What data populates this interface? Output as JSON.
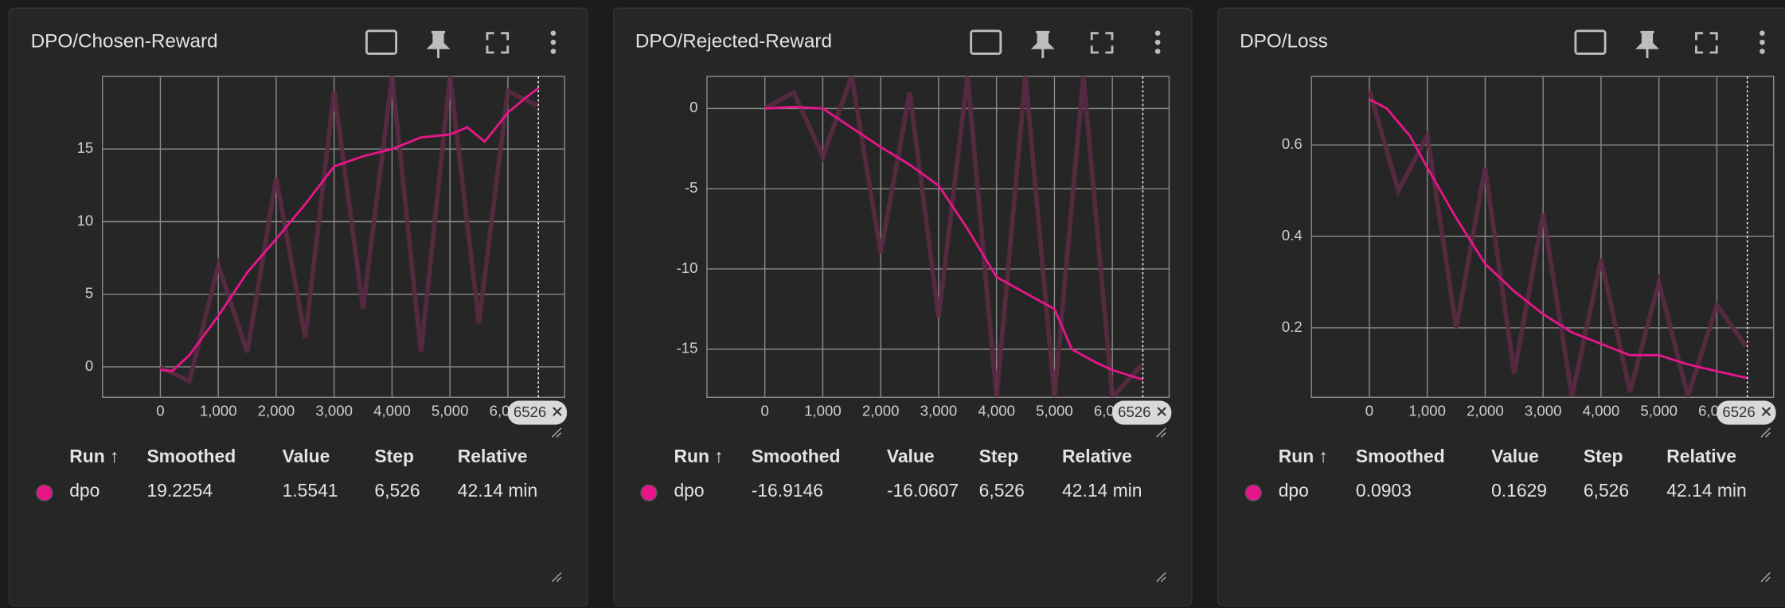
{
  "chart_data": [
    {
      "type": "line",
      "title": "DPO/Chosen-Reward",
      "xlim": [
        -1000,
        6980
      ],
      "ylim": [
        -2.1,
        20
      ],
      "xticks": [
        0,
        {
          "value": 1000,
          "label": "1,000"
        },
        {
          "value": 2000,
          "label": "2,000"
        },
        {
          "value": 3000,
          "label": "3,000"
        },
        {
          "value": 4000,
          "label": "4,000"
        },
        {
          "value": 5000,
          "label": "5,000"
        },
        {
          "value": 6000,
          "label": "6,000"
        }
      ],
      "yticks": [
        0,
        5,
        10,
        15
      ],
      "grid": true,
      "step_marker": 6526,
      "raw": {
        "x": [
          0,
          500,
          1000,
          1500,
          2000,
          2500,
          3000,
          3500,
          4000,
          4500,
          5000,
          5500,
          6000,
          6500
        ],
        "values": [
          0,
          -1,
          7,
          1,
          13,
          2,
          19,
          4,
          20,
          1,
          20,
          3,
          19,
          18
        ],
        "color": "#5b2a44"
      },
      "series": [
        {
          "name": "dpo",
          "color": "#e6168a",
          "x": [
            0,
            200,
            500,
            1000,
            1500,
            2000,
            2500,
            3000,
            3500,
            4000,
            4500,
            5000,
            5300,
            5600,
            6000,
            6300,
            6526
          ],
          "values": [
            -0.2,
            -0.3,
            0.8,
            3.5,
            6.5,
            8.8,
            11.2,
            13.8,
            14.5,
            15.0,
            15.8,
            16.0,
            16.5,
            15.5,
            17.5,
            18.5,
            19.2
          ]
        }
      ],
      "table": {
        "columns": [
          "Run ↑",
          "Smoothed",
          "Value",
          "Step",
          "Relative"
        ],
        "rows": [
          [
            "dpo",
            "19.2254",
            "1.5541",
            "6,526",
            "42.14 min"
          ]
        ]
      }
    },
    {
      "type": "line",
      "title": "DPO/Rejected-Reward",
      "xlim": [
        -1000,
        6980
      ],
      "ylim": [
        -18,
        2
      ],
      "xticks": [
        0,
        {
          "value": 1000,
          "label": "1,000"
        },
        {
          "value": 2000,
          "label": "2,000"
        },
        {
          "value": 3000,
          "label": "3,000"
        },
        {
          "value": 4000,
          "label": "4,000"
        },
        {
          "value": 5000,
          "label": "5,000"
        },
        {
          "value": 6000,
          "label": "6,000"
        }
      ],
      "yticks": [
        0,
        -5,
        -10,
        -15
      ],
      "grid": true,
      "step_marker": 6526,
      "raw": {
        "x": [
          0,
          500,
          1000,
          1500,
          2000,
          2500,
          3000,
          3500,
          4000,
          4500,
          5000,
          5500,
          6000,
          6500
        ],
        "values": [
          0,
          1,
          -3,
          2,
          -9,
          1,
          -13,
          2,
          -18,
          2,
          -18,
          2,
          -18,
          -16
        ],
        "color": "#5b2a44"
      },
      "series": [
        {
          "name": "dpo",
          "color": "#e6168a",
          "x": [
            0,
            500,
            1000,
            1500,
            2000,
            2500,
            3000,
            3500,
            4000,
            4500,
            5000,
            5300,
            5700,
            6000,
            6526
          ],
          "values": [
            0,
            0.1,
            0,
            -1.2,
            -2.4,
            -3.5,
            -4.8,
            -7.5,
            -10.5,
            -11.5,
            -12.5,
            -15,
            -15.8,
            -16.3,
            -16.9
          ]
        }
      ],
      "table": {
        "columns": [
          "Run ↑",
          "Smoothed",
          "Value",
          "Step",
          "Relative"
        ],
        "rows": [
          [
            "dpo",
            "-16.9146",
            "-16.0607",
            "6,526",
            "42.14 min"
          ]
        ]
      }
    },
    {
      "type": "line",
      "title": "DPO/Loss",
      "xlim": [
        -1000,
        6980
      ],
      "ylim": [
        0.048,
        0.75
      ],
      "xticks": [
        0,
        {
          "value": 1000,
          "label": "1,000"
        },
        {
          "value": 2000,
          "label": "2,000"
        },
        {
          "value": 3000,
          "label": "3,000"
        },
        {
          "value": 4000,
          "label": "4,000"
        },
        {
          "value": 5000,
          "label": "5,000"
        },
        {
          "value": 6000,
          "label": "6,000"
        }
      ],
      "yticks": [
        0.2,
        0.4,
        0.6
      ],
      "grid": true,
      "step_marker": 6526,
      "raw": {
        "x": [
          0,
          500,
          1000,
          1500,
          2000,
          2500,
          3000,
          3500,
          4000,
          4500,
          5000,
          5500,
          6000,
          6500
        ],
        "values": [
          0.72,
          0.5,
          0.62,
          0.2,
          0.55,
          0.1,
          0.45,
          0.05,
          0.35,
          0.06,
          0.3,
          0.05,
          0.25,
          0.16
        ],
        "color": "#5b2a44"
      },
      "series": [
        {
          "name": "dpo",
          "color": "#e6168a",
          "x": [
            0,
            300,
            700,
            1000,
            1500,
            2000,
            2500,
            3000,
            3500,
            4000,
            4500,
            5000,
            5500,
            6000,
            6526
          ],
          "values": [
            0.7,
            0.68,
            0.62,
            0.55,
            0.44,
            0.34,
            0.28,
            0.23,
            0.19,
            0.165,
            0.14,
            0.14,
            0.12,
            0.105,
            0.09
          ]
        }
      ],
      "table": {
        "columns": [
          "Run ↑",
          "Smoothed",
          "Value",
          "Step",
          "Relative"
        ],
        "rows": [
          [
            "dpo",
            "0.0903",
            "0.1629",
            "6,526",
            "42.14 min"
          ]
        ]
      }
    }
  ]
}
